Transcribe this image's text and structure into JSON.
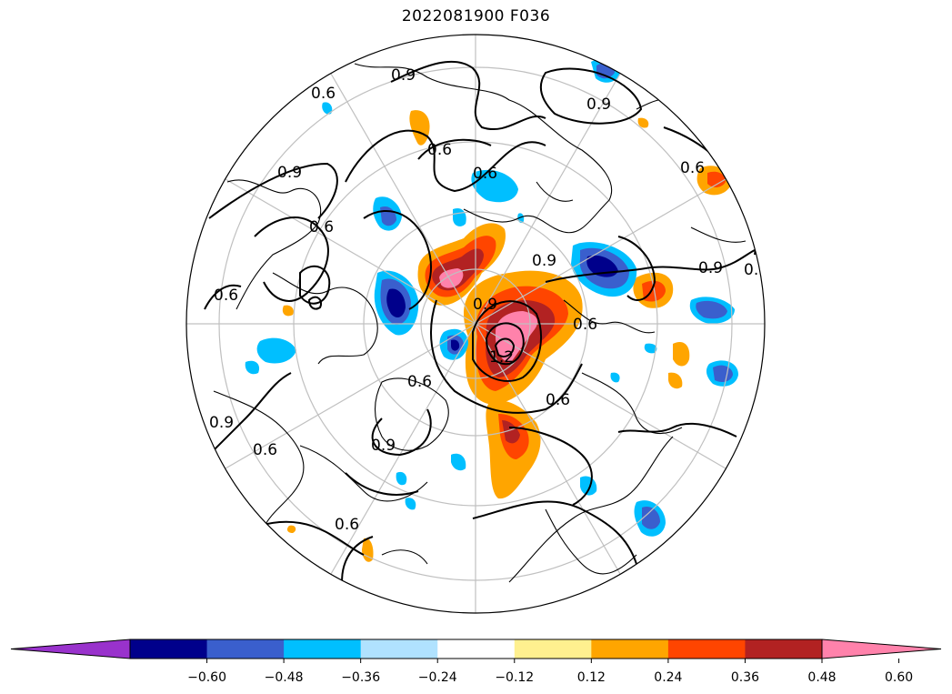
{
  "title": "2022081900 F036",
  "map": {
    "projection": "north-polar-stereographic",
    "contour_levels": [
      "0.6",
      "0.9",
      "1.2"
    ]
  },
  "colorbar": {
    "colors": [
      "#9932cc",
      "#00008b",
      "#3a5fcd",
      "#00bfff",
      "#b0e2ff",
      "#ffffff",
      "#fff08f",
      "#ffa500",
      "#ff4500",
      "#b22222",
      "#ff82ab"
    ],
    "tick_labels": [
      "−0.60",
      "−0.48",
      "−0.36",
      "−0.24",
      "−0.12",
      "0.12",
      "0.24",
      "0.36",
      "0.48",
      "0.60"
    ]
  }
}
